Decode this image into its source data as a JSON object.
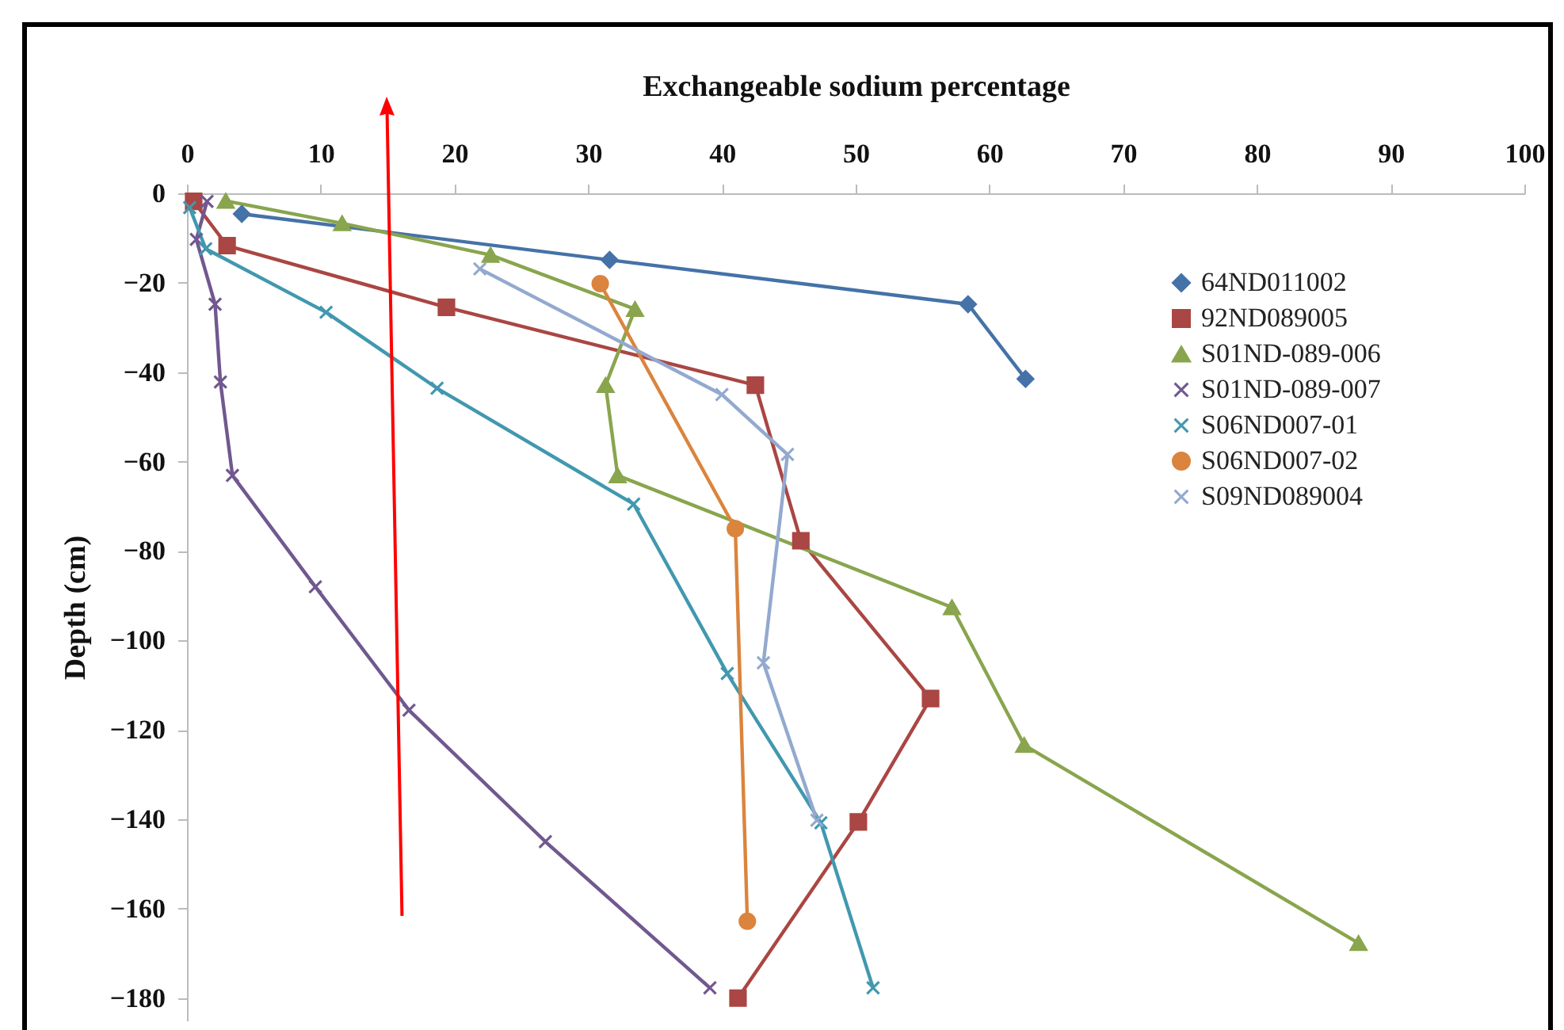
{
  "chart_data": {
    "type": "line",
    "xlabel": "Exchangeable sodium percentage",
    "ylabel": "Depth (cm)",
    "xlim": [
      0,
      100
    ],
    "xticks": [
      0,
      10,
      20,
      30,
      40,
      50,
      60,
      70,
      80,
      90,
      100
    ],
    "ylim": [
      -185,
      0
    ],
    "yticks": [
      0,
      -20,
      -40,
      -60,
      -80,
      -100,
      -120,
      -140,
      -160,
      -180
    ],
    "grid": false,
    "legend": "right",
    "series": [
      {
        "name": "64ND011002",
        "color": "#4572a7",
        "marker": "diamond",
        "x": [
          4.1,
          31.6,
          58.4,
          62.7
        ],
        "values": [
          -4.6,
          -14.9,
          -24.8,
          -41.5
        ]
      },
      {
        "name": "92ND089005",
        "color": "#aa4643",
        "marker": "square",
        "x": [
          0.5,
          3.0,
          19.4,
          42.5,
          45.9,
          55.6,
          50.2,
          41.2
        ],
        "values": [
          -1.8,
          -11.7,
          -25.5,
          -42.9,
          -77.7,
          -113,
          -140.6,
          -180
        ]
      },
      {
        "name": "S01ND-089-006",
        "color": "#89a54e",
        "marker": "triangle",
        "x": [
          2.9,
          11.6,
          22.7,
          33.5,
          31.3,
          32.2,
          57.2,
          62.6,
          87.6
        ],
        "values": [
          -1.7,
          -6.7,
          -13.8,
          -25.9,
          -42.9,
          -63.1,
          -92.6,
          -123.4,
          -167.7
        ]
      },
      {
        "name": "S01ND-089-007",
        "color": "#71588f",
        "marker": "cross",
        "x": [
          1.5,
          0.7,
          2.1,
          2.5,
          3.4,
          9.6,
          16.6,
          26.8,
          39.1
        ],
        "values": [
          -1.8,
          -10.3,
          -24.8,
          -42.2,
          -63.1,
          -88,
          -115.6,
          -145,
          -177.7
        ]
      },
      {
        "name": "S06ND007-01",
        "color": "#4198af",
        "marker": "cross",
        "x": [
          0.2,
          1.4,
          10.4,
          18.7,
          33.4,
          40.4,
          47.4,
          51.3
        ],
        "values": [
          -3.2,
          -12.4,
          -26.6,
          -43.6,
          -69.5,
          -107.4,
          -140.8,
          -177.7
        ]
      },
      {
        "name": "S06ND007-02",
        "color": "#db843d",
        "marker": "circle",
        "x": [
          30.9,
          41.0,
          41.9
        ],
        "values": [
          -20.2,
          -75,
          -162.8
        ]
      },
      {
        "name": "S09ND089004",
        "color": "#93a9cf",
        "marker": "cross",
        "x": [
          21.9,
          40.0,
          44.9,
          43.1,
          47.1
        ],
        "values": [
          -16.9,
          -45,
          -58.4,
          -105,
          -140.2
        ]
      }
    ]
  }
}
